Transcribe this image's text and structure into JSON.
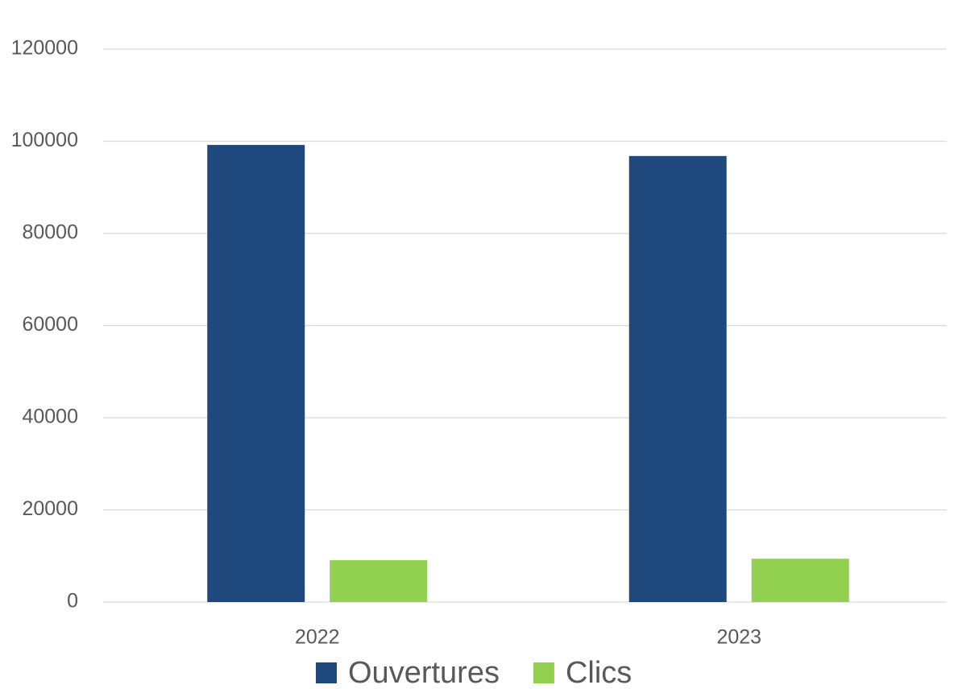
{
  "chart_data": {
    "type": "bar",
    "categories": [
      "2022",
      "2023"
    ],
    "series": [
      {
        "name": "Ouvertures",
        "color": "#1f497d",
        "values": [
          99200,
          96800
        ]
      },
      {
        "name": "Clics",
        "color": "#92d050",
        "values": [
          9100,
          9400
        ]
      }
    ],
    "ylim": [
      0,
      120000
    ],
    "yticks": [
      0,
      20000,
      40000,
      60000,
      80000,
      100000,
      120000
    ],
    "grid": true,
    "legend": "bottom"
  }
}
